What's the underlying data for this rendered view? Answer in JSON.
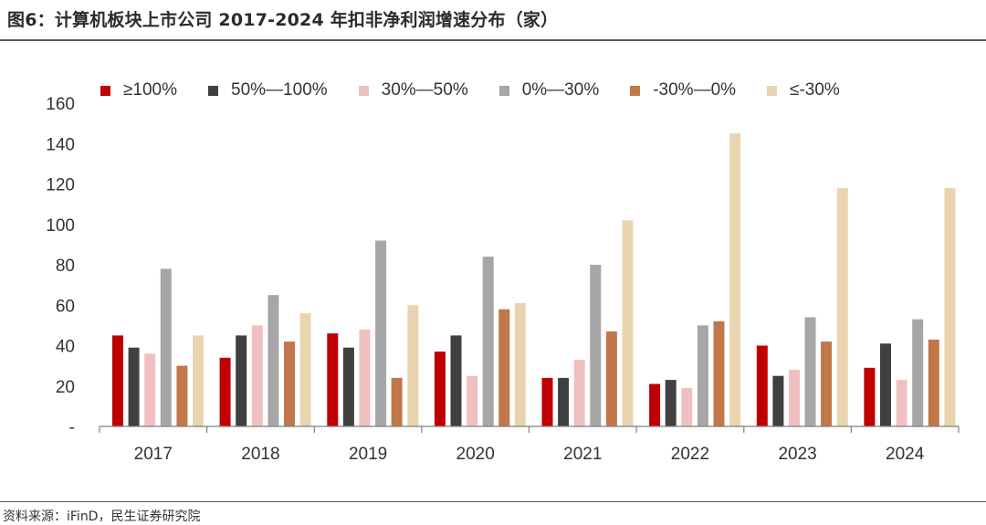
{
  "header": {
    "title": "图6：计算机板块上市公司 2017-2024 年扣非净利润增速分布（家）"
  },
  "footer": {
    "source": "资料来源：iFinD，民生证券研究院"
  },
  "chart_data": {
    "type": "bar",
    "title": "图6：计算机板块上市公司 2017-2024 年扣非净利润增速分布（家）",
    "categories": [
      "2017",
      "2018",
      "2019",
      "2020",
      "2021",
      "2022",
      "2023",
      "2024"
    ],
    "series": [
      {
        "name": "≥100%",
        "color": "#c00000",
        "values": [
          45,
          34,
          46,
          37,
          24,
          21,
          40,
          29
        ]
      },
      {
        "name": "50%—100%",
        "color": "#404040",
        "values": [
          39,
          45,
          39,
          45,
          24,
          23,
          25,
          41
        ]
      },
      {
        "name": "30%—50%",
        "color": "#f0c0c0",
        "values": [
          36,
          50,
          48,
          25,
          33,
          19,
          28,
          23
        ]
      },
      {
        "name": "0%—30%",
        "color": "#a6a6a6",
        "values": [
          78,
          65,
          92,
          84,
          80,
          50,
          54,
          53
        ]
      },
      {
        "name": "-30%—0%",
        "color": "#c0784a",
        "values": [
          30,
          42,
          24,
          58,
          47,
          52,
          42,
          43
        ]
      },
      {
        "name": "≤-30%",
        "color": "#e8d5b0",
        "values": [
          45,
          56,
          60,
          61,
          102,
          145,
          118,
          118
        ]
      }
    ],
    "yticks": [
      "-",
      "20",
      "40",
      "60",
      "80",
      "100",
      "120",
      "140",
      "160"
    ],
    "ylim": [
      0,
      160
    ],
    "xlabel": "",
    "ylabel": "",
    "grid": false,
    "legend_position": "top"
  }
}
